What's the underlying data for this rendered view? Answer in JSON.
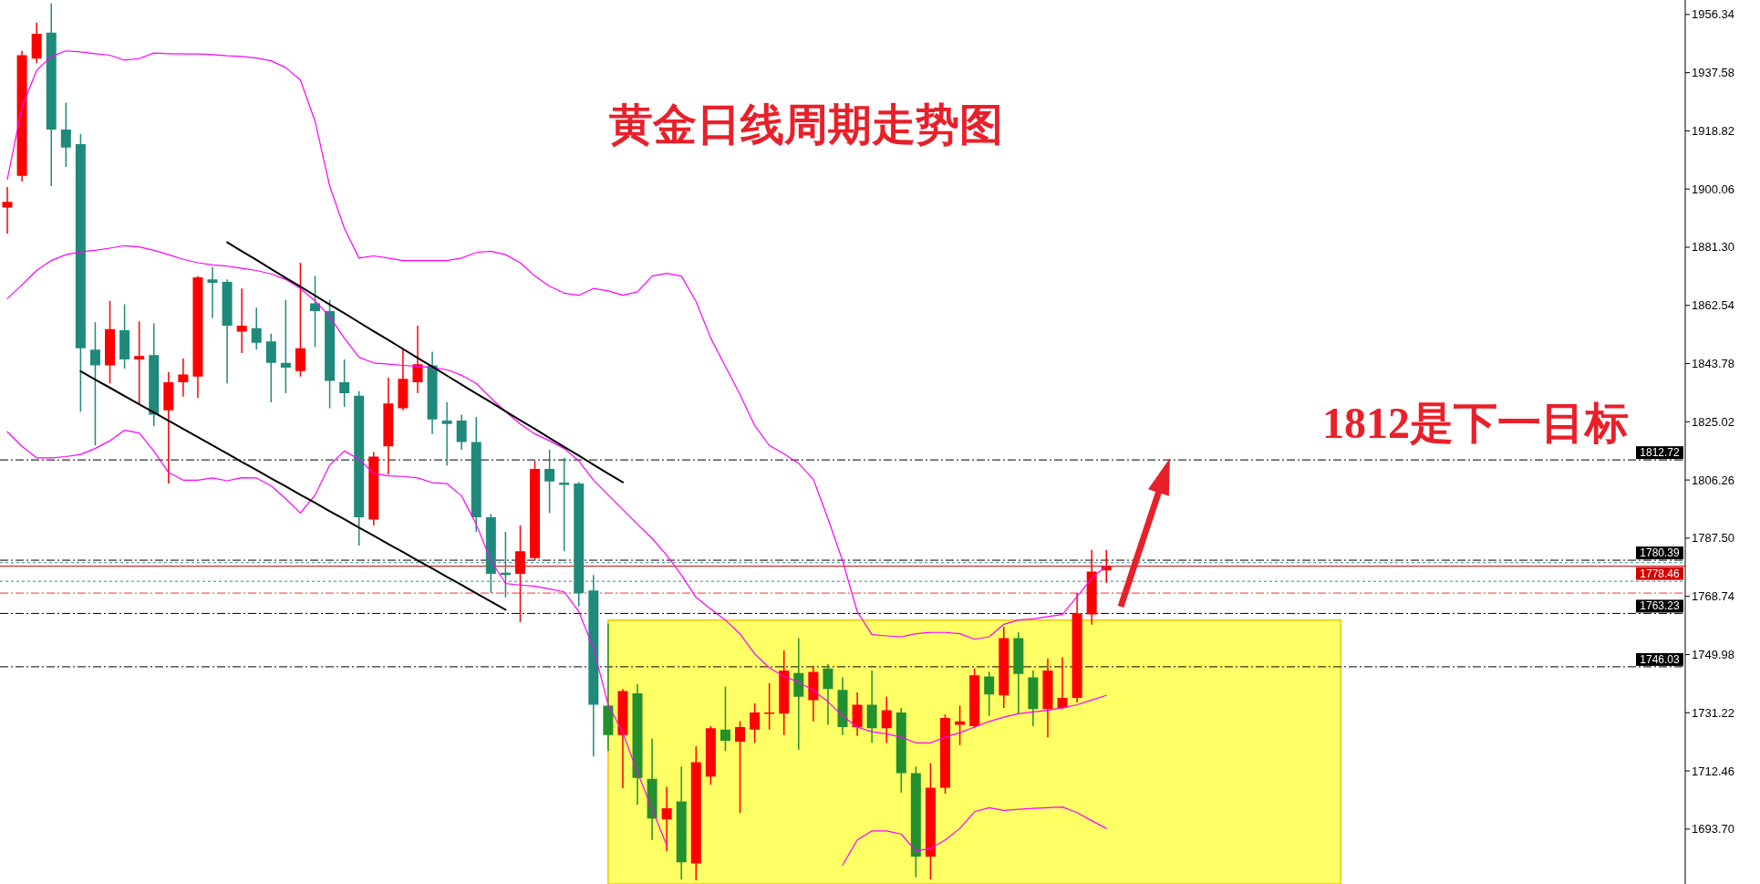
{
  "chart_data": {
    "type": "candlestick",
    "title": "黄金日线周期走势图",
    "annotations": [
      "1812是下一目标"
    ],
    "categories": [
      null,
      null,
      null,
      null,
      null,
      null,
      null,
      null,
      null,
      null,
      null,
      null,
      null,
      null,
      null,
      null,
      null,
      null,
      null,
      null,
      null,
      null,
      null,
      null,
      null,
      null,
      null,
      null,
      null,
      null,
      null,
      null,
      null,
      null,
      null,
      null,
      null,
      null,
      null,
      null,
      null,
      null,
      null,
      null,
      null,
      null,
      null,
      null,
      null,
      null,
      null,
      null,
      null,
      null,
      null,
      null,
      null,
      null,
      null,
      null,
      null,
      null,
      null,
      null,
      null,
      null,
      null,
      null,
      null,
      null,
      null,
      null,
      null,
      null,
      null,
      null,
      null,
      null,
      null,
      null,
      null,
      null,
      null,
      null,
      null,
      null,
      null,
      null,
      null,
      null,
      null,
      null,
      null,
      null,
      null,
      null,
      null,
      null,
      null,
      null,
      null,
      null,
      null,
      null,
      null,
      null,
      null,
      null,
      null,
      null,
      null,
      null,
      null,
      null,
      null
    ],
    "ohlc": [
      [
        1894.1,
        1900.7,
        1885.6,
        1895.9
      ],
      [
        1904.3,
        1944.6,
        1902.5,
        1943.2
      ],
      [
        1942.1,
        1953.7,
        1940.6,
        1950.1
      ],
      [
        1950.5,
        1959.9,
        1901.0,
        1919.2
      ],
      [
        1919.2,
        1927.9,
        1907.2,
        1913.4
      ],
      [
        1914.5,
        1917.8,
        1828.3,
        1848.7
      ],
      [
        1848.3,
        1857.1,
        1817.4,
        1843.2
      ],
      [
        1843.2,
        1864.0,
        1837.4,
        1854.9
      ],
      [
        1854.5,
        1862.9,
        1842.2,
        1845.1
      ],
      [
        1845.1,
        1857.4,
        1830.9,
        1846.2
      ],
      [
        1846.5,
        1856.7,
        1823.6,
        1827.3
      ],
      [
        1828.7,
        1841.1,
        1805.1,
        1837.8
      ],
      [
        1837.8,
        1845.4,
        1833.1,
        1840.3
      ],
      [
        1839.6,
        1872.0,
        1832.7,
        1871.6
      ],
      [
        1870.9,
        1874.9,
        1858.5,
        1869.8
      ],
      [
        1870.1,
        1870.9,
        1837.4,
        1856.0
      ],
      [
        1854.1,
        1868.0,
        1847.2,
        1856.0
      ],
      [
        1855.2,
        1861.8,
        1848.3,
        1850.5
      ],
      [
        1850.9,
        1853.4,
        1831.3,
        1844.0
      ],
      [
        1844.0,
        1864.3,
        1834.2,
        1842.5
      ],
      [
        1841.4,
        1876.3,
        1839.6,
        1848.7
      ],
      [
        1863.2,
        1872.0,
        1849.1,
        1860.7
      ],
      [
        1860.7,
        1864.3,
        1829.4,
        1838.2
      ],
      [
        1837.8,
        1845.1,
        1829.8,
        1834.2
      ],
      [
        1833.4,
        1834.9,
        1785.1,
        1794.2
      ],
      [
        1793.5,
        1815.3,
        1791.6,
        1813.8
      ],
      [
        1817.1,
        1839.2,
        1808.0,
        1830.9
      ],
      [
        1829.4,
        1848.7,
        1828.7,
        1838.9
      ],
      [
        1837.8,
        1856.0,
        1834.2,
        1843.6
      ],
      [
        1843.2,
        1847.6,
        1821.1,
        1825.8
      ],
      [
        1825.4,
        1831.3,
        1810.9,
        1824.3
      ],
      [
        1825.4,
        1827.3,
        1816.0,
        1818.5
      ],
      [
        1818.5,
        1826.5,
        1789.5,
        1794.2
      ],
      [
        1794.2,
        1795.3,
        1769.8,
        1776.0
      ],
      [
        1776.4,
        1789.5,
        1768.4,
        1775.6
      ],
      [
        1776.0,
        1791.6,
        1760.4,
        1783.3
      ],
      [
        1781.1,
        1812.4,
        1780.4,
        1809.8
      ],
      [
        1809.8,
        1816.0,
        1795.6,
        1805.8
      ],
      [
        1805.4,
        1813.4,
        1783.3,
        1804.7
      ],
      [
        1805.1,
        1805.6,
        1765.5,
        1769.8
      ],
      [
        1770.6,
        1775.6,
        1717.1,
        1733.8
      ],
      [
        1733.5,
        1760.0,
        1718.9,
        1724.0
      ],
      [
        1724.0,
        1738.9,
        1706.9,
        1738.2
      ],
      [
        1737.5,
        1740.4,
        1701.5,
        1710.2
      ],
      [
        1709.9,
        1722.9,
        1690.2,
        1697.1
      ],
      [
        1696.8,
        1707.3,
        1686.6,
        1700.4
      ],
      [
        1702.6,
        1713.9,
        1677.5,
        1683.0
      ],
      [
        1682.6,
        1720.4,
        1677.2,
        1715.3
      ],
      [
        1710.6,
        1726.9,
        1708.0,
        1726.2
      ],
      [
        1725.8,
        1739.7,
        1718.9,
        1722.2
      ],
      [
        1721.9,
        1728.4,
        1698.9,
        1726.6
      ],
      [
        1725.8,
        1734.2,
        1721.5,
        1731.3
      ],
      [
        1730.9,
        1740.8,
        1725.8,
        1731.3
      ],
      [
        1730.9,
        1751.3,
        1724.0,
        1744.8
      ],
      [
        1744.0,
        1755.3,
        1719.3,
        1736.4
      ],
      [
        1735.3,
        1746.2,
        1728.4,
        1744.4
      ],
      [
        1745.5,
        1746.9,
        1727.3,
        1738.9
      ],
      [
        1738.6,
        1742.6,
        1724.0,
        1726.6
      ],
      [
        1726.6,
        1737.8,
        1723.7,
        1733.8
      ],
      [
        1733.8,
        1744.8,
        1721.5,
        1726.2
      ],
      [
        1726.2,
        1736.4,
        1721.5,
        1732.0
      ],
      [
        1731.3,
        1732.8,
        1705.5,
        1711.7
      ],
      [
        1711.7,
        1713.9,
        1678.2,
        1684.8
      ],
      [
        1684.8,
        1715.0,
        1677.5,
        1707.0
      ],
      [
        1707.0,
        1730.6,
        1705.1,
        1729.5
      ],
      [
        1727.3,
        1733.5,
        1720.8,
        1728.4
      ],
      [
        1726.9,
        1745.5,
        1726.2,
        1743.3
      ],
      [
        1742.9,
        1744.4,
        1730.2,
        1737.1
      ],
      [
        1736.8,
        1758.9,
        1732.8,
        1755.3
      ],
      [
        1755.3,
        1757.1,
        1730.9,
        1743.7
      ],
      [
        1742.6,
        1744.8,
        1726.9,
        1732.4
      ],
      [
        1732.4,
        1748.7,
        1723.3,
        1744.8
      ],
      [
        1732.8,
        1749.1,
        1732.4,
        1736.0
      ],
      [
        1736.0,
        1769.8,
        1734.5,
        1763.3
      ],
      [
        1762.9,
        1783.7,
        1759.6,
        1776.7
      ],
      [
        1777.1,
        1783.7,
        1773.1,
        1778.5
      ],
      null,
      null,
      null,
      null,
      null,
      null,
      null,
      null,
      null,
      null,
      null,
      null,
      null,
      null,
      null,
      null,
      null,
      null,
      null,
      null,
      null,
      null,
      null,
      null,
      null,
      null,
      null,
      null,
      null,
      null,
      null,
      null,
      null,
      null,
      null,
      null,
      null,
      null,
      null
    ],
    "colors": [
      "#ff0000",
      "#ff0000",
      "#ff0000",
      "#1f8a7b",
      "#1f8a7b",
      "#1f8a7b",
      "#1f8a7b",
      "#ff0000",
      "#1f8a7b",
      "#ff0000",
      "#1f8a7b",
      "#ff0000",
      "#ff0000",
      "#ff0000",
      "#1f8a7b",
      "#1f8a7b",
      "#ff0000",
      "#1f8a7b",
      "#1f8a7b",
      "#1f8a7b",
      "#ff0000",
      "#1f8a7b",
      "#1f8a7b",
      "#1f8a7b",
      "#1f8a7b",
      "#ff0000",
      "#ff0000",
      "#ff0000",
      "#ff0000",
      "#1f8a7b",
      "#1f8a7b",
      "#1f8a7b",
      "#1f8a7b",
      "#1f8a7b",
      "#1f8a7b",
      "#ff0000",
      "#ff0000",
      "#1f8a7b",
      "#1f8a7b",
      "#1f8a7b",
      "#1f8a7b",
      "#22902e",
      "#ff0000",
      "#22902e",
      "#22902e",
      "#ff0000",
      "#22902e",
      "#ff0000",
      "#ff0000",
      "#22902e",
      "#ff0000",
      "#ff0000",
      "#ff0000",
      "#ff0000",
      "#22902e",
      "#ff0000",
      "#22902e",
      "#22902e",
      "#ff0000",
      "#22902e",
      "#ff0000",
      "#22902e",
      "#22902e",
      "#ff0000",
      "#ff0000",
      "#ff0000",
      "#ff0000",
      "#22902e",
      "#ff0000",
      "#22902e",
      "#22902e",
      "#ff0000",
      "#ff0000",
      "#ff0000",
      "#ff0000",
      "#ff0000",
      null,
      null,
      null,
      null,
      null,
      null,
      null,
      null,
      null,
      null,
      null,
      null,
      null,
      null,
      null,
      null,
      null,
      null,
      null,
      null,
      null,
      null,
      null,
      null,
      null,
      null,
      null,
      null,
      null,
      null,
      null,
      null,
      null,
      null,
      null,
      null,
      null,
      null,
      null
    ],
    "series": [
      {
        "type": "area",
        "color": "#ffff66",
        "values": [
          null,
          null,
          null,
          null,
          null,
          null,
          null,
          null,
          null,
          null,
          null,
          null,
          null,
          null,
          null,
          null,
          null,
          null,
          null,
          null,
          null,
          null,
          null,
          null,
          null,
          null,
          null,
          null,
          null,
          null,
          null,
          null,
          null,
          null,
          null,
          null,
          null,
          null,
          null,
          null,
          null,
          1761.1,
          1761.1,
          1761.1,
          1761.1,
          1761.1,
          1761.1,
          1761.1,
          1761.1,
          1761.1,
          1761.1,
          1761.1,
          1761.1,
          1761.1,
          1761.1,
          1761.1,
          1761.1,
          1761.1,
          1761.1,
          1761.1,
          1761.1,
          1761.1,
          1761.1,
          1761.1,
          1761.1,
          1761.1,
          1761.1,
          1761.1,
          1761.1,
          1761.1,
          1761.1,
          1761.1,
          1761.1,
          null,
          1761.1,
          1761.1,
          1761.1,
          1761.1,
          1761.1,
          1761.1,
          1761.1,
          1761.1,
          1761.1,
          1761.1,
          1761.1,
          1761.1,
          1761.1,
          1761.1,
          1761.1,
          1761.1,
          1761.1,
          1761.1,
          null,
          null,
          null,
          null,
          null,
          null,
          null,
          null,
          null,
          null,
          null,
          null,
          null,
          null,
          null,
          null,
          null,
          null,
          null,
          null,
          null,
          null,
          null
        ]
      },
      {
        "type": "line",
        "color": "#ff00ff",
        "values": [
          1903.2,
          1926.5,
          1938.3,
          1942.8,
          1944.6,
          1944.3,
          1943.7,
          1943.2,
          1941.6,
          1942.1,
          1943.9,
          1943.7,
          1943.6,
          1943.6,
          1943.4,
          1943.0,
          1942.8,
          1942.3,
          1941.4,
          1939.2,
          1935.2,
          1921.9,
          1901.0,
          1887.4,
          1877.8,
          1878.5,
          1877.8,
          1877.0,
          1877.0,
          1877.0,
          1877.0,
          1877.8,
          1879.6,
          1880.0,
          1878.9,
          1876.3,
          1872.0,
          1868.7,
          1866.5,
          1865.8,
          1868.0,
          1867.2,
          1865.8,
          1866.9,
          1872.0,
          1872.9,
          1872.0,
          1863.8,
          1852.0,
          1842.9,
          1833.8,
          1823.8,
          1817.4,
          1814.7,
          1811.6,
          1806.5,
          1793.8,
          1780.2,
          1763.8,
          1756.4,
          1756.0,
          1755.7,
          1756.7,
          1757.1,
          1757.1,
          1756.7,
          1754.9,
          1755.7,
          1759.7,
          1761.1,
          1761.5,
          1762.2,
          1762.9,
          1768.7,
          1774.6,
          1778.6,
          null,
          null,
          null,
          null,
          null,
          null,
          null,
          null,
          null,
          null,
          null,
          null,
          null,
          null,
          null,
          null,
          null,
          null,
          null,
          null,
          null,
          null,
          null,
          null,
          null,
          null,
          null,
          null,
          null,
          null,
          null,
          null,
          null,
          null,
          null,
          null,
          null,
          null,
          null
        ]
      },
      {
        "type": "line",
        "color": "#ff00ff",
        "values": [
          1864.7,
          1869.2,
          1873.8,
          1877.0,
          1878.9,
          1879.8,
          1880.3,
          1881.0,
          1881.8,
          1881.4,
          1880.3,
          1878.9,
          1877.4,
          1876.3,
          1875.6,
          1875.2,
          1874.5,
          1873.8,
          1872.7,
          1870.9,
          1868.0,
          1864.0,
          1858.9,
          1852.0,
          1845.8,
          1844.0,
          1843.6,
          1843.2,
          1842.9,
          1842.5,
          1841.8,
          1840.0,
          1837.4,
          1832.7,
          1828.3,
          1824.3,
          1821.1,
          1818.9,
          1816.4,
          1812.4,
          1806.2,
          1801.4,
          1796.7,
          1792.0,
          1787.4,
          1782.0,
          1775.6,
          1768.4,
          1764.7,
          1761.1,
          1756.6,
          1750.2,
          1745.7,
          1742.9,
          1741.1,
          1738.4,
          1734.8,
          1730.2,
          1726.6,
          1725.1,
          1724.4,
          1723.3,
          1721.5,
          1721.5,
          1723.3,
          1724.8,
          1726.6,
          1728.4,
          1729.8,
          1730.9,
          1731.5,
          1732.0,
          1732.8,
          1733.8,
          1735.3,
          1736.8,
          null,
          null,
          null,
          null,
          null,
          null,
          null,
          null,
          null,
          null,
          null,
          null,
          null,
          null,
          null,
          null,
          null,
          null,
          null,
          null,
          null,
          null,
          null,
          null,
          null,
          null,
          null,
          null,
          null,
          null,
          null,
          null,
          null,
          null,
          null,
          null,
          null,
          null,
          null
        ]
      },
      {
        "type": "line",
        "color": "#ff00ff",
        "values": [
          1821.8,
          1817.1,
          1813.4,
          1813.4,
          1813.8,
          1814.5,
          1816.4,
          1818.9,
          1822.3,
          1821.4,
          1815.6,
          1808.7,
          1806.2,
          1806.2,
          1806.9,
          1806.0,
          1807.0,
          1806.9,
          1804.4,
          1800.2,
          1795.6,
          1801.4,
          1811.1,
          1815.6,
          1812.9,
          1808.4,
          1807.6,
          1807.4,
          1806.9,
          1805.4,
          1805.1,
          1801.1,
          1792.0,
          1780.2,
          1772.9,
          1772.4,
          1772.0,
          1771.1,
          1770.2,
          1763.8,
          1752.0,
          1733.8,
          1724.8,
          1712.0,
          1700.2,
          1688.4,
          null,
          null,
          null,
          null,
          null,
          null,
          null,
          null,
          null,
          null,
          null,
          1682.1,
          1690.2,
          1693.1,
          1693.1,
          1692.1,
          1686.6,
          1687.5,
          1690.2,
          1693.9,
          1699.3,
          1700.6,
          1699.7,
          1700.1,
          1700.4,
          1700.6,
          1700.8,
          1699.0,
          1696.4,
          1693.9,
          null,
          null,
          null,
          null,
          null,
          null,
          null,
          null,
          null,
          null,
          null,
          null,
          null,
          null,
          null,
          null,
          null,
          null,
          null,
          null,
          null,
          null,
          null,
          null,
          null,
          null,
          null,
          null,
          null,
          null,
          null,
          null,
          null,
          null,
          null,
          null,
          null,
          null,
          null
        ]
      },
      {
        "type": "line",
        "color": "#000000",
        "values": [
          null,
          null,
          null,
          null,
          null,
          null,
          null,
          null,
          null,
          null,
          null,
          null,
          null,
          null,
          null,
          1882.9,
          1880.0,
          1877.2,
          1874.3,
          1871.4,
          1868.6,
          1865.7,
          1862.8,
          1860.0,
          1857.1,
          1854.2,
          1851.4,
          1848.5,
          1845.6,
          1842.8,
          1839.9,
          1837.0,
          1834.1,
          1831.3,
          1828.4,
          1825.5,
          1822.7,
          1819.8,
          1816.9,
          1814.1,
          1811.2,
          1808.3,
          1805.5,
          null,
          null,
          null,
          null,
          null,
          null,
          null,
          null,
          null,
          null,
          null,
          null,
          null,
          null,
          null,
          null,
          null,
          null,
          null,
          null,
          null,
          null,
          null,
          null,
          null,
          null,
          null,
          null,
          null,
          null,
          null,
          null,
          null,
          null,
          null,
          null,
          null,
          null,
          null,
          null,
          null,
          null,
          null,
          null,
          null,
          null,
          null,
          null,
          null,
          null,
          null,
          null,
          null,
          null,
          null,
          null,
          null,
          null,
          null,
          null,
          null,
          null,
          null,
          null,
          null,
          null,
          null,
          null,
          null,
          null,
          null,
          null
        ]
      },
      {
        "type": "line",
        "color": "#000000",
        "values": [
          null,
          null,
          null,
          null,
          null,
          1841.3,
          1838.6,
          1836.0,
          1833.3,
          1830.7,
          1828.0,
          1825.4,
          1822.7,
          1820.1,
          1817.4,
          1814.8,
          1812.1,
          1809.5,
          1806.8,
          1804.2,
          1801.5,
          1798.9,
          1796.2,
          1793.6,
          1790.9,
          1788.3,
          1785.6,
          1783.0,
          1780.3,
          1777.7,
          1775.0,
          1772.4,
          1769.7,
          1767.1,
          1764.4,
          null,
          null,
          null,
          null,
          null,
          null,
          null,
          null,
          null,
          null,
          null,
          null,
          null,
          null,
          null,
          null,
          null,
          null,
          null,
          null,
          null,
          null,
          null,
          null,
          null,
          null,
          null,
          null,
          null,
          null,
          null,
          null,
          null,
          null,
          null,
          null,
          null,
          null,
          null,
          null,
          null,
          null,
          null,
          null,
          null,
          null,
          null,
          null,
          null,
          null,
          null,
          null,
          null,
          null,
          null,
          null,
          null,
          null,
          null,
          null,
          null,
          null,
          null,
          null,
          null,
          null,
          null,
          null,
          null,
          null,
          null,
          null,
          null,
          null,
          null,
          null,
          null,
          null,
          null,
          null
        ]
      }
    ],
    "ref_lines": [
      {
        "axis": "y",
        "value": 1812.72,
        "label": "1812.72",
        "color": "#000000",
        "line_style": "dashed"
      },
      {
        "axis": "y",
        "value": 1780.39,
        "label": "1780.39",
        "color": "#000000",
        "line_style": "dashed"
      },
      {
        "axis": "y",
        "value": 1779.6,
        "color": "#2e8b8b",
        "line_style": "dotted"
      },
      {
        "axis": "y",
        "value": 1778.46,
        "label": "1778.46",
        "color": "#d40000",
        "line_style": "solid"
      },
      {
        "axis": "y",
        "value": 1773.6,
        "color": "#2e8b8b",
        "line_style": "dotted"
      },
      {
        "axis": "y",
        "value": 1769.8,
        "color": "#ff3030",
        "line_style": "dashed"
      },
      {
        "axis": "y",
        "value": 1763.23,
        "label": "1763.23",
        "color": "#000000",
        "line_style": "dashed"
      },
      {
        "axis": "y",
        "value": 1746.03,
        "label": "1746.03",
        "color": "#000000",
        "line_style": "dashed"
      }
    ],
    "ylim": [
      1676.0,
      1961.0
    ],
    "yticks": [
      {
        "value": 1693.7,
        "label": "1693.70"
      },
      1712.46,
      1731.22,
      1749.98,
      1768.74,
      {
        "value": 1787.5,
        "label": "1787.50"
      },
      1806.26,
      1825.02,
      1843.78,
      1862.54,
      {
        "value": 1881.3,
        "label": "1881.30"
      },
      1900.06,
      1918.82,
      1937.58,
      1956.34
    ],
    "tick_labels": "y"
  }
}
